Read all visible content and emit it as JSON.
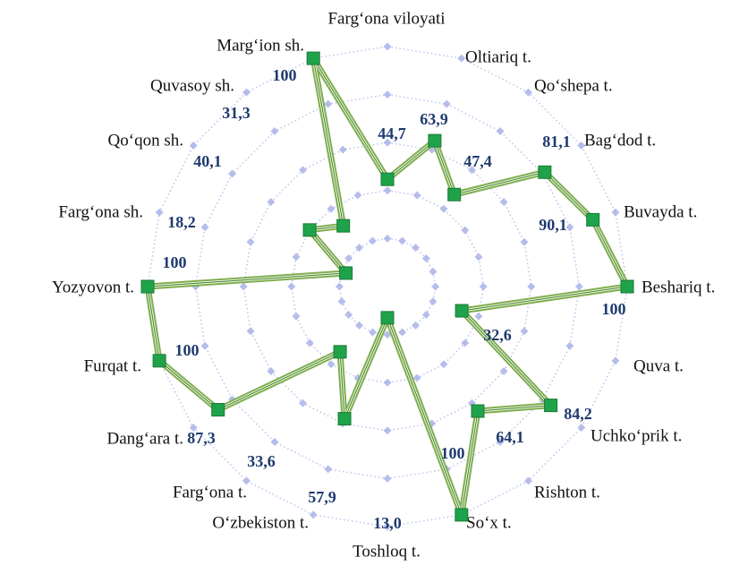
{
  "chart_data": {
    "type": "radar",
    "categories": [
      "Farg‘ona viloyati",
      "Oltiariq t.",
      "Qo‘shepa t.",
      "Bag‘dod t.",
      "Buvayda t.",
      "Beshariq t.",
      "Quva t.",
      "Uchko‘prik t.",
      "Rishton t.",
      "So‘x t.",
      "Toshloq t.",
      "O‘zbekiston t.",
      "Farg‘ona t.",
      "Dang‘ara t.",
      "Furqat t.",
      "Yozyovon t.",
      "Farg‘ona sh.",
      "Qo‘qon sh.",
      "Quvasoy sh.",
      "Marg‘ion sh."
    ],
    "values": [
      44.7,
      63.9,
      47.4,
      81.1,
      90.1,
      100,
      32.6,
      84.2,
      64.1,
      100,
      13.0,
      57.9,
      33.6,
      87.3,
      100,
      100,
      18.2,
      40.1,
      31.3,
      100
    ],
    "value_labels": [
      "44,7",
      "63,9",
      "47,4",
      "81,1",
      "90,1",
      "100",
      "32,6",
      "84,2",
      "64,1",
      "100",
      "13,0",
      "57,9",
      "33,6",
      "87,3",
      "100",
      "100",
      "18,2",
      "40,1",
      "31,3",
      "100"
    ],
    "color": "#7fae4e",
    "marker_color": "#1fa34a",
    "grid_color": "#a9b3e8",
    "rlim": [
      0,
      100
    ],
    "rticks": [
      20,
      40,
      60,
      80,
      100
    ],
    "grid": true
  }
}
